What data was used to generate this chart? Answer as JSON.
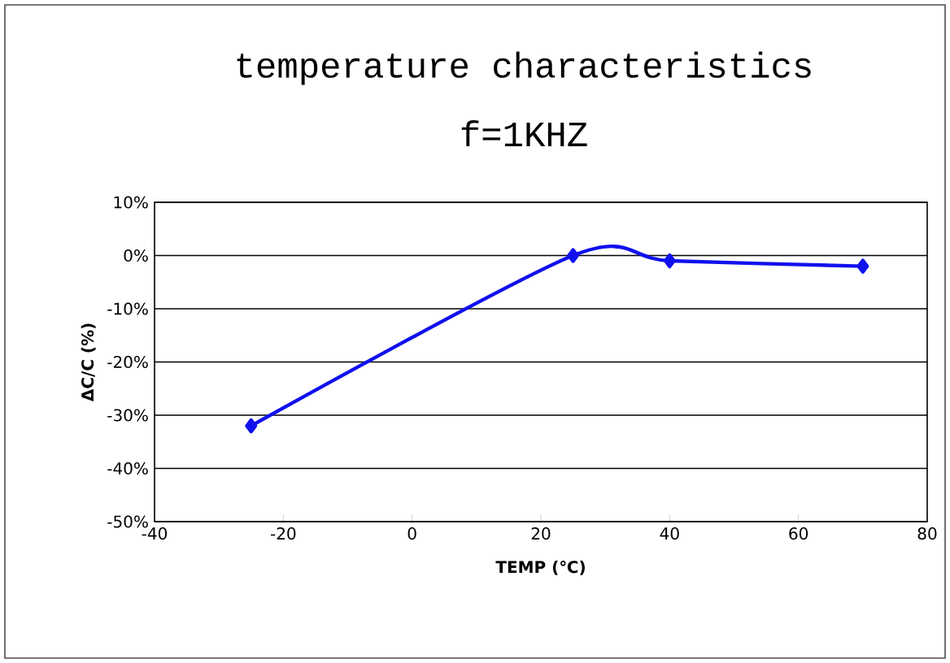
{
  "chart_data": {
    "type": "line",
    "title": "temperature  characteristics",
    "subtitle": "f=1KHZ",
    "xlabel": "TEMP (℃)",
    "ylabel": "ΔC/C (%)",
    "x": [
      -25,
      25,
      40,
      70
    ],
    "series": [
      {
        "color": "#1010ee",
        "values": [
          -32,
          0,
          -1,
          -2
        ]
      }
    ],
    "xlim": [
      -40,
      80
    ],
    "xticks": [
      -40,
      -20,
      0,
      20,
      40,
      60,
      80
    ],
    "ylim": [
      -50,
      10
    ],
    "yticks": [
      {
        "value": 10,
        "label": "10%"
      },
      {
        "value": 0,
        "label": "0%"
      },
      {
        "value": -10,
        "label": "-10%"
      },
      {
        "value": -20,
        "label": "-20%"
      },
      {
        "value": -30,
        "label": "-30%"
      },
      {
        "value": -40,
        "label": "-40%"
      },
      {
        "value": -50,
        "label": "-50%"
      }
    ],
    "grid": "y",
    "marker": "diamond",
    "line_style": "solid"
  }
}
